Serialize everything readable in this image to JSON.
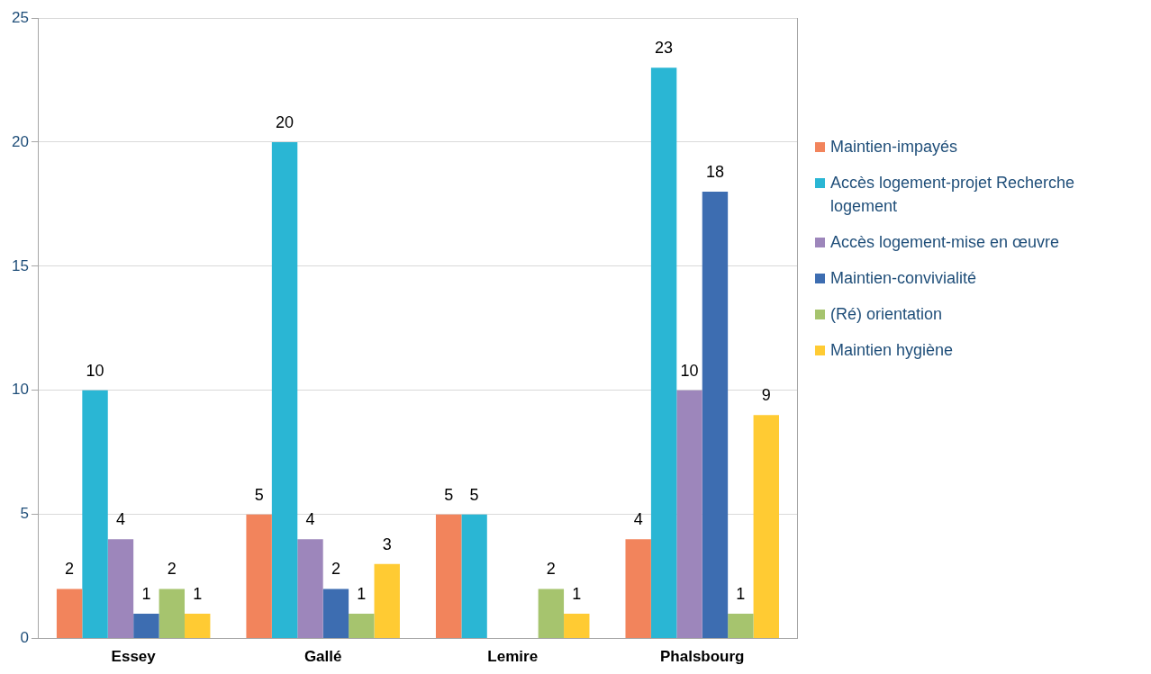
{
  "chart_data": {
    "type": "bar",
    "categories": [
      "Essey",
      "Gallé",
      "Lemire",
      "Phalsbourg"
    ],
    "series": [
      {
        "name": "Maintien-impayés",
        "color": "#f2845c",
        "values": [
          2,
          5,
          5,
          4
        ]
      },
      {
        "name": "Accès logement-projet Recherche logement",
        "color": "#2ab6d4",
        "values": [
          10,
          20,
          5,
          23
        ]
      },
      {
        "name": "Accès logement-mise en œuvre",
        "color": "#9d86bb",
        "values": [
          4,
          4,
          null,
          10
        ]
      },
      {
        "name": "Maintien-convivialité",
        "color": "#3d6db1",
        "values": [
          1,
          2,
          null,
          18
        ]
      },
      {
        "name": "(Ré) orientation",
        "color": "#a6c46e",
        "values": [
          2,
          1,
          2,
          1
        ]
      },
      {
        "name": "Maintien hygiène",
        "color": "#ffcb33",
        "values": [
          1,
          3,
          1,
          9
        ]
      }
    ],
    "ylim": [
      0,
      25
    ],
    "yticks": [
      0,
      5,
      10,
      15,
      20,
      25
    ],
    "grid": "y",
    "legend": "right",
    "data_labels": true
  }
}
